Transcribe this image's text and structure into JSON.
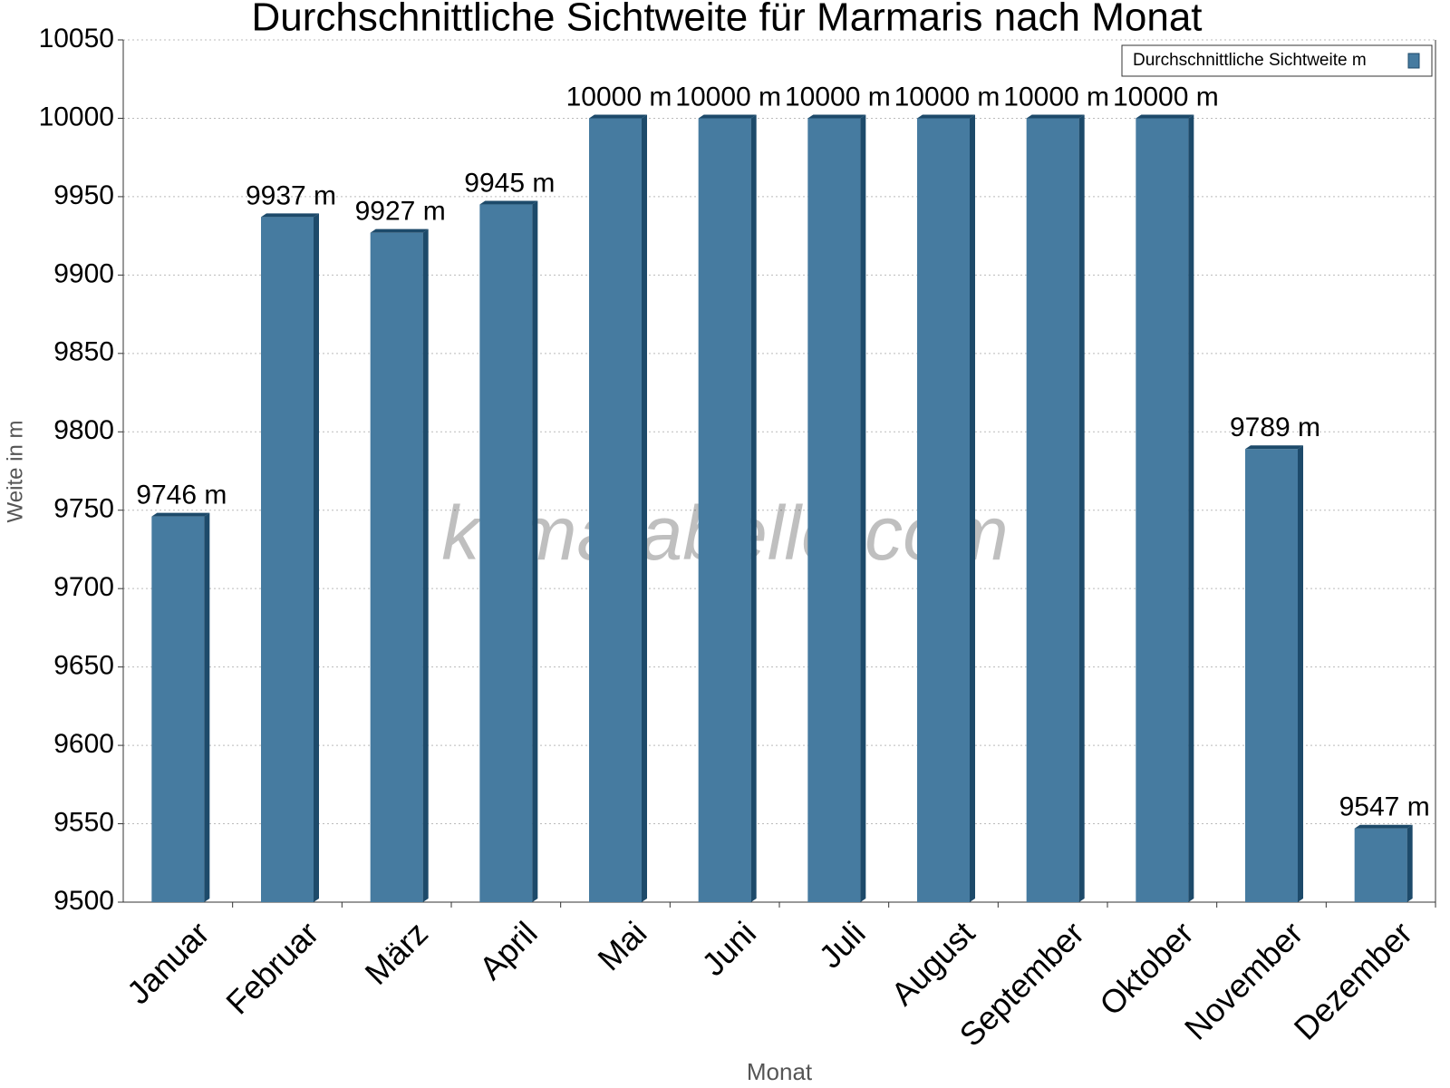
{
  "chart_data": {
    "type": "bar",
    "title": "Durchschnittliche Sichtweite für Marmaris nach Monat",
    "x_label": "Monat",
    "y_label": "Weite in m",
    "watermark": "klimatabelle.com",
    "categories": [
      "Januar",
      "Februar",
      "März",
      "April",
      "Mai",
      "Juni",
      "Juli",
      "August",
      "September",
      "Oktober",
      "November",
      "Dezember"
    ],
    "series": [
      {
        "name": "Durchschnittliche Sichtweite m",
        "color": "#467ba0",
        "values": [
          9746,
          9937,
          9927,
          9945,
          10000,
          10000,
          10000,
          10000,
          10000,
          10000,
          9789,
          9547
        ],
        "value_labels": [
          "9746 m",
          "9937 m",
          "9927 m",
          "9945 m",
          "10000 m",
          "10000 m",
          "10000 m",
          "10000 m",
          "10000 m",
          "10000 m",
          "9789 m",
          "9547 m"
        ]
      }
    ],
    "ylim": [
      9500,
      10050
    ],
    "yticks": [
      9500,
      9550,
      9600,
      9650,
      9700,
      9750,
      9800,
      9850,
      9900,
      9950,
      10000,
      10050
    ],
    "grid": true,
    "legend": "top-right"
  }
}
